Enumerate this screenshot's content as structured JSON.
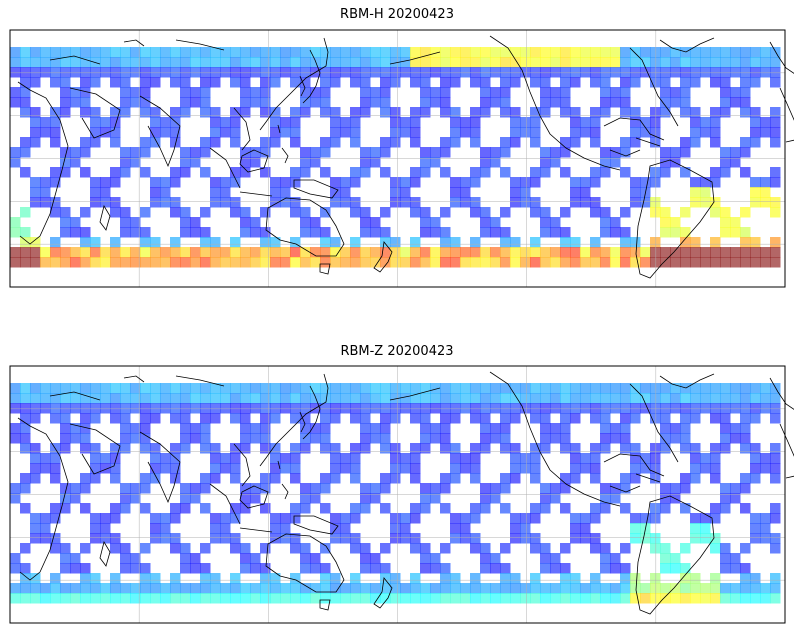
{
  "panels": [
    {
      "title": "RBM-H 20200423",
      "variant": "H",
      "colormap": "jet",
      "colormap_alpha": 0.6
    },
    {
      "title": "RBM-Z 20200423",
      "variant": "Z",
      "colormap": "jet",
      "colormap_alpha": 0.6
    }
  ],
  "map": {
    "projection": "Plate Carree",
    "central_longitude": 180,
    "lon_range": [
      -180,
      180
    ],
    "lat_range": [
      -70,
      80
    ],
    "data_lat_range": [
      -60,
      60
    ],
    "gridlines": true,
    "coastlines": true
  }
}
